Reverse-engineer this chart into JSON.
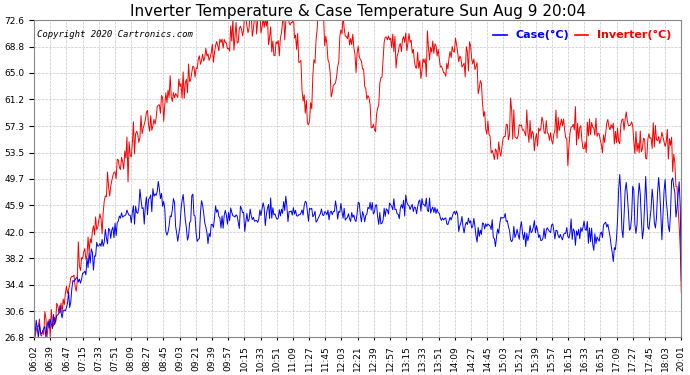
{
  "title": "Inverter Temperature & Case Temperature Sun Aug 9 20:04",
  "copyright": "Copyright 2020 Cartronics.com",
  "legend_case": "Case(°C)",
  "legend_inverter": "Inverter(°C)",
  "ylim": [
    26.8,
    72.6
  ],
  "yticks": [
    26.8,
    30.6,
    34.4,
    38.2,
    42.0,
    45.9,
    49.7,
    53.5,
    57.3,
    61.2,
    65.0,
    68.8,
    72.6
  ],
  "background_color": "#ffffff",
  "grid_color": "#c8c8c8",
  "case_color": "blue",
  "inverter_color": "red",
  "title_fontsize": 11,
  "tick_fontsize": 6.5,
  "legend_fontsize": 8,
  "x_labels": [
    "06:02",
    "06:39",
    "06:47",
    "07:15",
    "07:33",
    "07:51",
    "08:09",
    "08:27",
    "08:45",
    "09:03",
    "09:21",
    "09:39",
    "09:57",
    "10:15",
    "10:33",
    "10:51",
    "11:09",
    "11:27",
    "11:45",
    "12:03",
    "12:21",
    "12:39",
    "12:57",
    "13:15",
    "13:33",
    "13:51",
    "14:09",
    "14:27",
    "14:45",
    "15:03",
    "15:21",
    "15:39",
    "15:57",
    "16:15",
    "16:33",
    "16:51",
    "17:09",
    "17:27",
    "17:45",
    "18:03",
    "20:01"
  ]
}
